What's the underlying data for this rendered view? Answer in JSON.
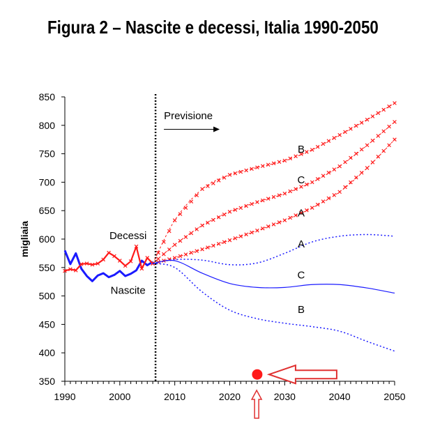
{
  "chart_data": {
    "type": "line",
    "title": "Figura 2 – Nascite e decessi, Italia 1990-2050",
    "xlabel": "",
    "ylabel": "migliaia",
    "xlim": [
      1990,
      2050
    ],
    "ylim": [
      350,
      850
    ],
    "x_ticks": [
      1990,
      2000,
      2010,
      2020,
      2030,
      2040,
      2050
    ],
    "y_ticks": [
      350,
      400,
      450,
      500,
      550,
      600,
      650,
      700,
      750,
      800,
      850
    ],
    "forecast_start_year": 2006.5,
    "forecast_label": "Previsione",
    "series": [
      {
        "name": "Nascite",
        "group": "nascite",
        "style": "solid-blue",
        "x": [
          1990,
          1991,
          1992,
          1993,
          1994,
          1995,
          1996,
          1997,
          1998,
          1999,
          2000,
          2001,
          2002,
          2003,
          2004,
          2005,
          2006
        ],
        "y": [
          580,
          556,
          575,
          548,
          535,
          526,
          536,
          540,
          533,
          537,
          544,
          535,
          539,
          545,
          562,
          554,
          560
        ]
      },
      {
        "name": "Decessi",
        "group": "decessi",
        "style": "red-cross",
        "x": [
          1990,
          1991,
          1992,
          1993,
          1994,
          1995,
          1996,
          1997,
          1998,
          1999,
          2000,
          2001,
          2002,
          2003,
          2004,
          2005,
          2006
        ],
        "y": [
          544,
          547,
          545,
          556,
          557,
          555,
          557,
          564,
          576,
          570,
          562,
          553,
          561,
          587,
          548,
          567,
          557
        ]
      },
      {
        "name": "Decessi A",
        "group": "decessi",
        "style": "red-cross",
        "x": [
          2006,
          2010,
          2015,
          2020,
          2025,
          2030,
          2035,
          2040,
          2045,
          2050
        ],
        "y": [
          557,
          567,
          582,
          598,
          615,
          633,
          655,
          683,
          725,
          775
        ]
      },
      {
        "name": "Decessi C",
        "group": "decessi",
        "style": "red-cross",
        "x": [
          2006,
          2010,
          2015,
          2020,
          2025,
          2030,
          2035,
          2040,
          2045,
          2050
        ],
        "y": [
          557,
          590,
          624,
          648,
          665,
          680,
          700,
          728,
          765,
          806
        ]
      },
      {
        "name": "Decessi B",
        "group": "decessi",
        "style": "red-cross",
        "x": [
          2006,
          2010,
          2015,
          2020,
          2025,
          2030,
          2035,
          2040,
          2045,
          2050
        ],
        "y": [
          557,
          633,
          688,
          713,
          726,
          738,
          757,
          783,
          810,
          839
        ]
      },
      {
        "name": "Nascite A",
        "group": "nascite",
        "style": "dotted-blue",
        "x": [
          2006,
          2010,
          2015,
          2020,
          2025,
          2030,
          2035,
          2040,
          2045,
          2050
        ],
        "y": [
          557,
          564,
          563,
          555,
          558,
          575,
          595,
          605,
          608,
          605
        ]
      },
      {
        "name": "Nascite C",
        "group": "nascite",
        "style": "solid-blue-thin",
        "x": [
          2006,
          2010,
          2015,
          2020,
          2025,
          2030,
          2035,
          2040,
          2045,
          2050
        ],
        "y": [
          557,
          562,
          540,
          522,
          515,
          515,
          520,
          520,
          514,
          505
        ]
      },
      {
        "name": "Nascite B",
        "group": "nascite",
        "style": "dotted-blue",
        "x": [
          2006,
          2010,
          2015,
          2020,
          2025,
          2030,
          2035,
          2040,
          2045,
          2050
        ],
        "y": [
          557,
          550,
          507,
          475,
          460,
          452,
          446,
          438,
          420,
          403
        ]
      }
    ],
    "annotations": [
      {
        "text": "Decessi",
        "x": 2001.5,
        "y": 600
      },
      {
        "text": "Nascite",
        "x": 2001.5,
        "y": 504
      },
      {
        "text": "B",
        "x": 2033,
        "y": 752
      },
      {
        "text": "C",
        "x": 2033,
        "y": 698
      },
      {
        "text": "A",
        "x": 2033,
        "y": 640
      },
      {
        "text": "A",
        "x": 2033,
        "y": 585
      },
      {
        "text": "C",
        "x": 2033,
        "y": 531
      },
      {
        "text": "B",
        "x": 2033,
        "y": 470
      }
    ],
    "marker": {
      "x": 2025,
      "y": 362,
      "color": "#ff1a1a"
    },
    "arrow_color": "#e03030"
  }
}
